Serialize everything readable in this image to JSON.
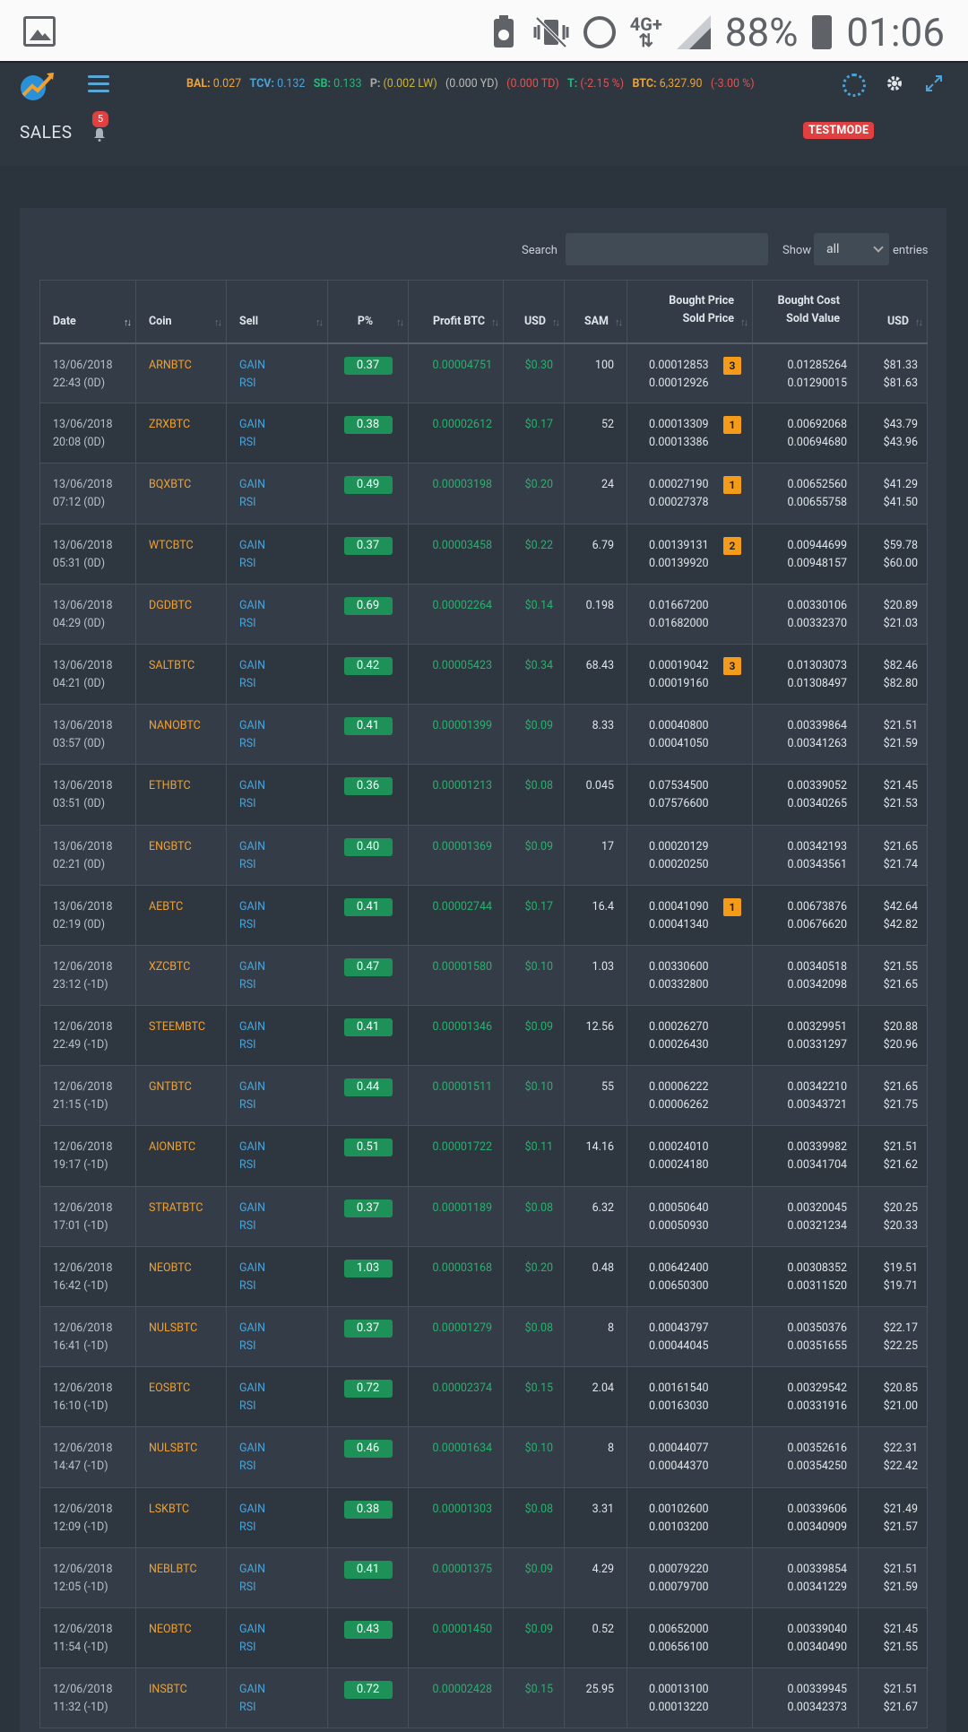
{
  "statusbar": {
    "network": "4G+",
    "battery_pct": "88%",
    "time": "01:06"
  },
  "header": {
    "stats": [
      {
        "k": "BAL",
        "kc": "k",
        "v": "0.027",
        "vc": "vo"
      },
      {
        "k": "TCV",
        "kc": "kb",
        "v": "0.132",
        "vc": "vb"
      },
      {
        "k": "SB",
        "kc": "kg",
        "v": "0.133",
        "vc": "vg"
      },
      {
        "k": "P",
        "kc": "kp",
        "v": "(0.002 LW)",
        "vc": "vy"
      },
      {
        "k": "",
        "kc": "kp",
        "v": "(0.000 YD)",
        "vc": "vw"
      },
      {
        "k": "",
        "kc": "kp",
        "v": "(0.000 TD)",
        "vc": "vr"
      },
      {
        "k": "T",
        "kc": "kg",
        "v": "(-2.15 %)",
        "vc": "vr"
      },
      {
        "k": "BTC",
        "kc": "k",
        "v": "6,327.90",
        "vc": "vo"
      },
      {
        "k": "",
        "kc": "k",
        "v": "(-3.00 %)",
        "vc": "vr"
      }
    ],
    "page_title": "SALES",
    "notification_count": "5",
    "mode_badge": "TESTMODE"
  },
  "filters": {
    "search_label": "Search",
    "search_value": "",
    "show_label": "Show",
    "show_value": "all",
    "entries_label": "entries"
  },
  "columns": [
    "Date",
    "Coin",
    "Sell",
    "P%",
    "Profit BTC",
    "USD",
    "SAM",
    "Bought Price",
    "Sold Price",
    "Bought Cost",
    "Sold Value",
    "USD"
  ],
  "rows": [
    {
      "date": "13/06/2018",
      "rel": "22:43 (0D)",
      "coin": "ARNBTC",
      "s1": "GAIN",
      "s2": "RSI",
      "pct": "0.37",
      "profit": "0.00004751",
      "usd": "$0.30",
      "sam": "100",
      "bp": "0.00012853",
      "sp": "0.00012926",
      "dca": "3",
      "bc": "0.01285264",
      "sv": "0.01290015",
      "ub": "$81.33",
      "us": "$81.63"
    },
    {
      "date": "13/06/2018",
      "rel": "20:08 (0D)",
      "coin": "ZRXBTC",
      "s1": "GAIN",
      "s2": "RSI",
      "pct": "0.38",
      "profit": "0.00002612",
      "usd": "$0.17",
      "sam": "52",
      "bp": "0.00013309",
      "sp": "0.00013386",
      "dca": "1",
      "bc": "0.00692068",
      "sv": "0.00694680",
      "ub": "$43.79",
      "us": "$43.96"
    },
    {
      "date": "13/06/2018",
      "rel": "07:12 (0D)",
      "coin": "BQXBTC",
      "s1": "GAIN",
      "s2": "RSI",
      "pct": "0.49",
      "profit": "0.00003198",
      "usd": "$0.20",
      "sam": "24",
      "bp": "0.00027190",
      "sp": "0.00027378",
      "dca": "1",
      "bc": "0.00652560",
      "sv": "0.00655758",
      "ub": "$41.29",
      "us": "$41.50"
    },
    {
      "date": "13/06/2018",
      "rel": "05:31 (0D)",
      "coin": "WTCBTC",
      "s1": "GAIN",
      "s2": "RSI",
      "pct": "0.37",
      "profit": "0.00003458",
      "usd": "$0.22",
      "sam": "6.79",
      "bp": "0.00139131",
      "sp": "0.00139920",
      "dca": "2",
      "bc": "0.00944699",
      "sv": "0.00948157",
      "ub": "$59.78",
      "us": "$60.00"
    },
    {
      "date": "13/06/2018",
      "rel": "04:29 (0D)",
      "coin": "DGDBTC",
      "s1": "GAIN",
      "s2": "RSI",
      "pct": "0.69",
      "profit": "0.00002264",
      "usd": "$0.14",
      "sam": "0.198",
      "bp": "0.01667200",
      "sp": "0.01682000",
      "dca": "",
      "bc": "0.00330106",
      "sv": "0.00332370",
      "ub": "$20.89",
      "us": "$21.03"
    },
    {
      "date": "13/06/2018",
      "rel": "04:21 (0D)",
      "coin": "SALTBTC",
      "s1": "GAIN",
      "s2": "RSI",
      "pct": "0.42",
      "profit": "0.00005423",
      "usd": "$0.34",
      "sam": "68.43",
      "bp": "0.00019042",
      "sp": "0.00019160",
      "dca": "3",
      "bc": "0.01303073",
      "sv": "0.01308497",
      "ub": "$82.46",
      "us": "$82.80"
    },
    {
      "date": "13/06/2018",
      "rel": "03:57 (0D)",
      "coin": "NANOBTC",
      "s1": "GAIN",
      "s2": "RSI",
      "pct": "0.41",
      "profit": "0.00001399",
      "usd": "$0.09",
      "sam": "8.33",
      "bp": "0.00040800",
      "sp": "0.00041050",
      "dca": "",
      "bc": "0.00339864",
      "sv": "0.00341263",
      "ub": "$21.51",
      "us": "$21.59"
    },
    {
      "date": "13/06/2018",
      "rel": "03:51 (0D)",
      "coin": "ETHBTC",
      "s1": "GAIN",
      "s2": "RSI",
      "pct": "0.36",
      "profit": "0.00001213",
      "usd": "$0.08",
      "sam": "0.045",
      "bp": "0.07534500",
      "sp": "0.07576600",
      "dca": "",
      "bc": "0.00339052",
      "sv": "0.00340265",
      "ub": "$21.45",
      "us": "$21.53"
    },
    {
      "date": "13/06/2018",
      "rel": "02:21 (0D)",
      "coin": "ENGBTC",
      "s1": "GAIN",
      "s2": "RSI",
      "pct": "0.40",
      "profit": "0.00001369",
      "usd": "$0.09",
      "sam": "17",
      "bp": "0.00020129",
      "sp": "0.00020250",
      "dca": "",
      "bc": "0.00342193",
      "sv": "0.00343561",
      "ub": "$21.65",
      "us": "$21.74"
    },
    {
      "date": "13/06/2018",
      "rel": "02:19 (0D)",
      "coin": "AEBTC",
      "s1": "GAIN",
      "s2": "RSI",
      "pct": "0.41",
      "profit": "0.00002744",
      "usd": "$0.17",
      "sam": "16.4",
      "bp": "0.00041090",
      "sp": "0.00041340",
      "dca": "1",
      "bc": "0.00673876",
      "sv": "0.00676620",
      "ub": "$42.64",
      "us": "$42.82"
    },
    {
      "date": "12/06/2018",
      "rel": "23:12 (-1D)",
      "coin": "XZCBTC",
      "s1": "GAIN",
      "s2": "RSI",
      "pct": "0.47",
      "profit": "0.00001580",
      "usd": "$0.10",
      "sam": "1.03",
      "bp": "0.00330600",
      "sp": "0.00332800",
      "dca": "",
      "bc": "0.00340518",
      "sv": "0.00342098",
      "ub": "$21.55",
      "us": "$21.65"
    },
    {
      "date": "12/06/2018",
      "rel": "22:49 (-1D)",
      "coin": "STEEMBTC",
      "s1": "GAIN",
      "s2": "RSI",
      "pct": "0.41",
      "profit": "0.00001346",
      "usd": "$0.09",
      "sam": "12.56",
      "bp": "0.00026270",
      "sp": "0.00026430",
      "dca": "",
      "bc": "0.00329951",
      "sv": "0.00331297",
      "ub": "$20.88",
      "us": "$20.96"
    },
    {
      "date": "12/06/2018",
      "rel": "21:15 (-1D)",
      "coin": "GNTBTC",
      "s1": "GAIN",
      "s2": "RSI",
      "pct": "0.44",
      "profit": "0.00001511",
      "usd": "$0.10",
      "sam": "55",
      "bp": "0.00006222",
      "sp": "0.00006262",
      "dca": "",
      "bc": "0.00342210",
      "sv": "0.00343721",
      "ub": "$21.65",
      "us": "$21.75"
    },
    {
      "date": "12/06/2018",
      "rel": "19:17 (-1D)",
      "coin": "AIONBTC",
      "s1": "GAIN",
      "s2": "RSI",
      "pct": "0.51",
      "profit": "0.00001722",
      "usd": "$0.11",
      "sam": "14.16",
      "bp": "0.00024010",
      "sp": "0.00024180",
      "dca": "",
      "bc": "0.00339982",
      "sv": "0.00341704",
      "ub": "$21.51",
      "us": "$21.62"
    },
    {
      "date": "12/06/2018",
      "rel": "17:01 (-1D)",
      "coin": "STRATBTC",
      "s1": "GAIN",
      "s2": "RSI",
      "pct": "0.37",
      "profit": "0.00001189",
      "usd": "$0.08",
      "sam": "6.32",
      "bp": "0.00050640",
      "sp": "0.00050930",
      "dca": "",
      "bc": "0.00320045",
      "sv": "0.00321234",
      "ub": "$20.25",
      "us": "$20.33"
    },
    {
      "date": "12/06/2018",
      "rel": "16:42 (-1D)",
      "coin": "NEOBTC",
      "s1": "GAIN",
      "s2": "RSI",
      "pct": "1.03",
      "profit": "0.00003168",
      "usd": "$0.20",
      "sam": "0.48",
      "bp": "0.00642400",
      "sp": "0.00650300",
      "dca": "",
      "bc": "0.00308352",
      "sv": "0.00311520",
      "ub": "$19.51",
      "us": "$19.71"
    },
    {
      "date": "12/06/2018",
      "rel": "16:41 (-1D)",
      "coin": "NULSBTC",
      "s1": "GAIN",
      "s2": "RSI",
      "pct": "0.37",
      "profit": "0.00001279",
      "usd": "$0.08",
      "sam": "8",
      "bp": "0.00043797",
      "sp": "0.00044045",
      "dca": "",
      "bc": "0.00350376",
      "sv": "0.00351655",
      "ub": "$22.17",
      "us": "$22.25"
    },
    {
      "date": "12/06/2018",
      "rel": "16:10 (-1D)",
      "coin": "EOSBTC",
      "s1": "GAIN",
      "s2": "RSI",
      "pct": "0.72",
      "profit": "0.00002374",
      "usd": "$0.15",
      "sam": "2.04",
      "bp": "0.00161540",
      "sp": "0.00163030",
      "dca": "",
      "bc": "0.00329542",
      "sv": "0.00331916",
      "ub": "$20.85",
      "us": "$21.00"
    },
    {
      "date": "12/06/2018",
      "rel": "14:47 (-1D)",
      "coin": "NULSBTC",
      "s1": "GAIN",
      "s2": "RSI",
      "pct": "0.46",
      "profit": "0.00001634",
      "usd": "$0.10",
      "sam": "8",
      "bp": "0.00044077",
      "sp": "0.00044370",
      "dca": "",
      "bc": "0.00352616",
      "sv": "0.00354250",
      "ub": "$22.31",
      "us": "$22.42"
    },
    {
      "date": "12/06/2018",
      "rel": "12:09 (-1D)",
      "coin": "LSKBTC",
      "s1": "GAIN",
      "s2": "RSI",
      "pct": "0.38",
      "profit": "0.00001303",
      "usd": "$0.08",
      "sam": "3.31",
      "bp": "0.00102600",
      "sp": "0.00103200",
      "dca": "",
      "bc": "0.00339606",
      "sv": "0.00340909",
      "ub": "$21.49",
      "us": "$21.57"
    },
    {
      "date": "12/06/2018",
      "rel": "12:05 (-1D)",
      "coin": "NEBLBTC",
      "s1": "GAIN",
      "s2": "RSI",
      "pct": "0.41",
      "profit": "0.00001375",
      "usd": "$0.09",
      "sam": "4.29",
      "bp": "0.00079220",
      "sp": "0.00079700",
      "dca": "",
      "bc": "0.00339854",
      "sv": "0.00341229",
      "ub": "$21.51",
      "us": "$21.59"
    },
    {
      "date": "12/06/2018",
      "rel": "11:54 (-1D)",
      "coin": "NEOBTC",
      "s1": "GAIN",
      "s2": "RSI",
      "pct": "0.43",
      "profit": "0.00001450",
      "usd": "$0.09",
      "sam": "0.52",
      "bp": "0.00652000",
      "sp": "0.00656100",
      "dca": "",
      "bc": "0.00339040",
      "sv": "0.00340490",
      "ub": "$21.45",
      "us": "$21.55"
    },
    {
      "date": "12/06/2018",
      "rel": "11:32 (-1D)",
      "coin": "INSBTC",
      "s1": "GAIN",
      "s2": "RSI",
      "pct": "0.72",
      "profit": "0.00002428",
      "usd": "$0.15",
      "sam": "25.95",
      "bp": "0.00013100",
      "sp": "0.00013220",
      "dca": "",
      "bc": "0.00339945",
      "sv": "0.00342373",
      "ub": "$21.51",
      "us": "$21.67"
    }
  ]
}
